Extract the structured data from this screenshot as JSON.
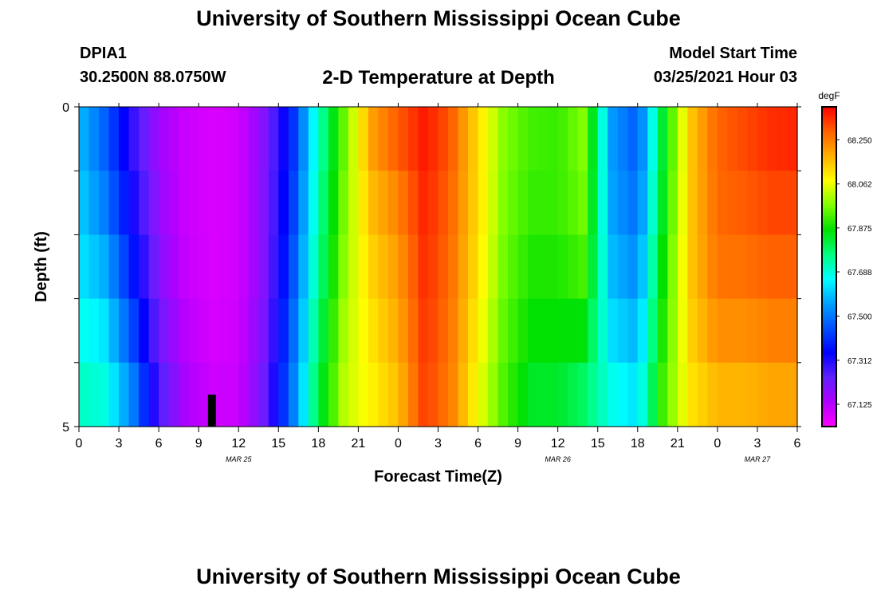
{
  "header": {
    "title": "University of Southern Mississippi Ocean Cube",
    "station": "DPIA1",
    "coordinates": "30.2500N 88.0750W",
    "subtitle": "2-D Temperature at Depth",
    "model_start_label": "Model Start Time",
    "model_start_value": "03/25/2021 Hour 03"
  },
  "footer": {
    "title": "University of Southern Mississippi Ocean Cube"
  },
  "chart_data": {
    "type": "heatmap",
    "xlabel": "Forecast Time(Z)",
    "ylabel": "Depth (ft)",
    "xlim": [
      0,
      54
    ],
    "ylim": [
      0,
      5
    ],
    "y_reversed": true,
    "x_tick_labels": [
      "0",
      "3",
      "6",
      "9",
      "12",
      "15",
      "18",
      "21",
      "0",
      "3",
      "6",
      "9",
      "12",
      "15",
      "18",
      "21",
      "0",
      "3",
      "6"
    ],
    "y_tick_labels": [
      "0",
      "5"
    ],
    "date_labels": [
      {
        "hour": 12,
        "text": "MAR 25"
      },
      {
        "hour": 36,
        "text": "MAR 26"
      },
      {
        "hour": 51,
        "text": "MAR 27"
      }
    ],
    "colorbar": {
      "unit": "degF",
      "tick_labels": [
        "67.125",
        "67.312",
        "67.500",
        "67.688",
        "67.875",
        "68.062",
        "68.250"
      ],
      "ticks": [
        67.125,
        67.312,
        67.5,
        67.688,
        67.875,
        68.062,
        68.25
      ],
      "range": [
        67.03,
        68.39
      ],
      "colors": [
        "#ff00ff",
        "#b000ff",
        "#6020ff",
        "#0000ff",
        "#0050ff",
        "#00a0ff",
        "#00ffff",
        "#00ff80",
        "#00e000",
        "#80ff00",
        "#ffff00",
        "#ffb000",
        "#ff6000",
        "#ff0000"
      ]
    },
    "depth_levels": [
      0,
      1,
      2,
      3,
      4,
      5
    ],
    "hours": [
      0,
      2,
      4,
      6,
      8,
      10,
      12,
      14,
      16,
      18,
      20,
      22,
      24,
      26,
      28,
      30,
      32,
      34,
      36,
      38,
      40,
      42,
      44,
      46,
      48,
      50,
      52,
      54
    ],
    "values": [
      [
        67.58,
        67.45,
        67.28,
        67.15,
        67.1,
        67.08,
        67.09,
        67.2,
        67.38,
        67.7,
        67.95,
        68.22,
        68.32,
        68.37,
        68.3,
        68.12,
        67.97,
        67.92,
        67.9,
        67.98,
        67.55,
        67.45,
        67.85,
        68.15,
        68.28,
        68.32,
        68.35,
        68.37
      ],
      [
        67.6,
        67.48,
        67.3,
        67.16,
        67.1,
        67.08,
        67.09,
        67.2,
        67.4,
        67.72,
        67.97,
        68.18,
        68.26,
        68.36,
        68.28,
        68.12,
        67.97,
        67.92,
        67.92,
        67.97,
        67.55,
        67.47,
        67.85,
        68.15,
        68.28,
        68.3,
        68.33,
        68.33
      ],
      [
        67.62,
        67.53,
        67.35,
        67.18,
        67.1,
        67.08,
        67.09,
        67.2,
        67.42,
        67.74,
        67.98,
        68.15,
        68.22,
        68.35,
        68.27,
        68.12,
        67.96,
        67.9,
        67.9,
        67.95,
        67.57,
        67.5,
        67.88,
        68.15,
        68.27,
        68.28,
        68.3,
        68.3
      ],
      [
        67.65,
        67.6,
        67.4,
        67.2,
        67.11,
        67.08,
        67.09,
        67.2,
        67.45,
        67.76,
        68.0,
        68.12,
        68.2,
        68.34,
        68.26,
        68.1,
        67.95,
        67.88,
        67.88,
        67.9,
        67.6,
        67.55,
        67.9,
        68.15,
        68.25,
        68.25,
        68.27,
        68.27
      ],
      [
        67.7,
        67.66,
        67.48,
        67.24,
        67.13,
        67.09,
        67.1,
        67.22,
        67.48,
        67.8,
        68.02,
        68.1,
        68.18,
        68.33,
        68.25,
        68.08,
        67.93,
        67.85,
        67.85,
        67.82,
        67.65,
        67.6,
        67.92,
        68.12,
        68.2,
        68.2,
        68.22,
        68.22
      ],
      [
        67.72,
        67.7,
        67.55,
        67.28,
        67.15,
        67.1,
        67.1,
        67.24,
        67.5,
        67.82,
        68.03,
        68.08,
        68.15,
        68.32,
        68.24,
        68.06,
        67.92,
        67.82,
        67.82,
        67.75,
        67.7,
        67.65,
        67.95,
        68.1,
        68.15,
        68.15,
        68.17,
        68.17
      ]
    ],
    "markers": [
      {
        "type": "vertical-bar",
        "hour": 10,
        "depth_from": 4.5,
        "depth_to": 5
      }
    ]
  }
}
